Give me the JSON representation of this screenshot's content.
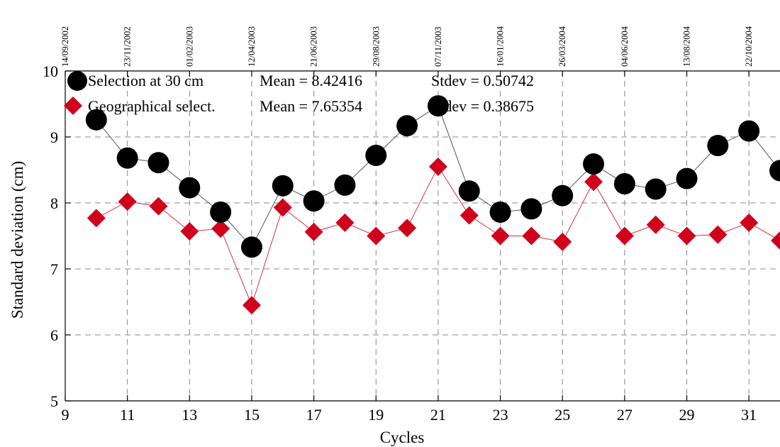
{
  "chart_data": {
    "type": "line",
    "xlabel": "Cycles",
    "ylabel": "Standard deviation (cm)",
    "xlim": [
      9,
      32
    ],
    "ylim": [
      5,
      10
    ],
    "xticks": [
      9,
      11,
      13,
      15,
      17,
      19,
      21,
      23,
      25,
      27,
      29,
      31
    ],
    "xtick_labels": [
      "9",
      "11",
      "13",
      "15",
      "17",
      "19",
      "21",
      "23",
      "25",
      "27",
      "29",
      "31"
    ],
    "yticks": [
      5,
      6,
      7,
      8,
      9,
      10
    ],
    "ytick_labels": [
      "5",
      "6",
      "7",
      "8",
      "9",
      "10"
    ],
    "grid": true,
    "legend_placement": "top-left",
    "top_date_ticks": [
      {
        "x": 9,
        "label": "14/09/2002"
      },
      {
        "x": 11,
        "label": "23/11/2002"
      },
      {
        "x": 13,
        "label": "01/02/2003"
      },
      {
        "x": 15,
        "label": "12/04/2003"
      },
      {
        "x": 17,
        "label": "21/06/2003"
      },
      {
        "x": 19,
        "label": "29/08/2003"
      },
      {
        "x": 21,
        "label": "07/11/2003"
      },
      {
        "x": 23,
        "label": "16/01/2004"
      },
      {
        "x": 25,
        "label": "26/03/2004"
      },
      {
        "x": 27,
        "label": "04/06/2004"
      },
      {
        "x": 29,
        "label": "13/08/2004"
      },
      {
        "x": 31,
        "label": "22/10/2004"
      }
    ],
    "series": [
      {
        "name": "Selection at 30 cm",
        "mean_text": "Mean = 8.42416",
        "stdev_text": "Stdev = 0.50742",
        "color": "#000000",
        "line_color": "#555555",
        "marker": "circle",
        "x": [
          10,
          11,
          12,
          13,
          14,
          15,
          16,
          17,
          18,
          19,
          20,
          21,
          22,
          23,
          24,
          25,
          26,
          27,
          28,
          29,
          30,
          31,
          32
        ],
        "values": [
          9.26,
          8.68,
          8.61,
          8.23,
          7.86,
          7.33,
          8.26,
          8.03,
          8.27,
          8.72,
          9.17,
          9.47,
          8.18,
          7.86,
          7.91,
          8.11,
          8.59,
          8.29,
          8.21,
          8.37,
          8.87,
          9.09,
          8.49
        ]
      },
      {
        "name": "Geographical select.",
        "mean_text": "Mean = 7.65354",
        "stdev_text": "Stdev = 0.38675",
        "color": "#d0021b",
        "line_color": "#e03040",
        "marker": "diamond",
        "x": [
          10,
          11,
          12,
          13,
          14,
          15,
          16,
          17,
          18,
          19,
          20,
          21,
          22,
          23,
          24,
          25,
          26,
          27,
          28,
          29,
          30,
          31,
          32
        ],
        "values": [
          7.77,
          8.02,
          7.95,
          7.57,
          7.61,
          6.45,
          7.93,
          7.56,
          7.7,
          7.5,
          7.62,
          8.55,
          7.81,
          7.5,
          7.5,
          7.41,
          8.32,
          7.5,
          7.67,
          7.5,
          7.52,
          7.7,
          7.43
        ]
      }
    ]
  }
}
